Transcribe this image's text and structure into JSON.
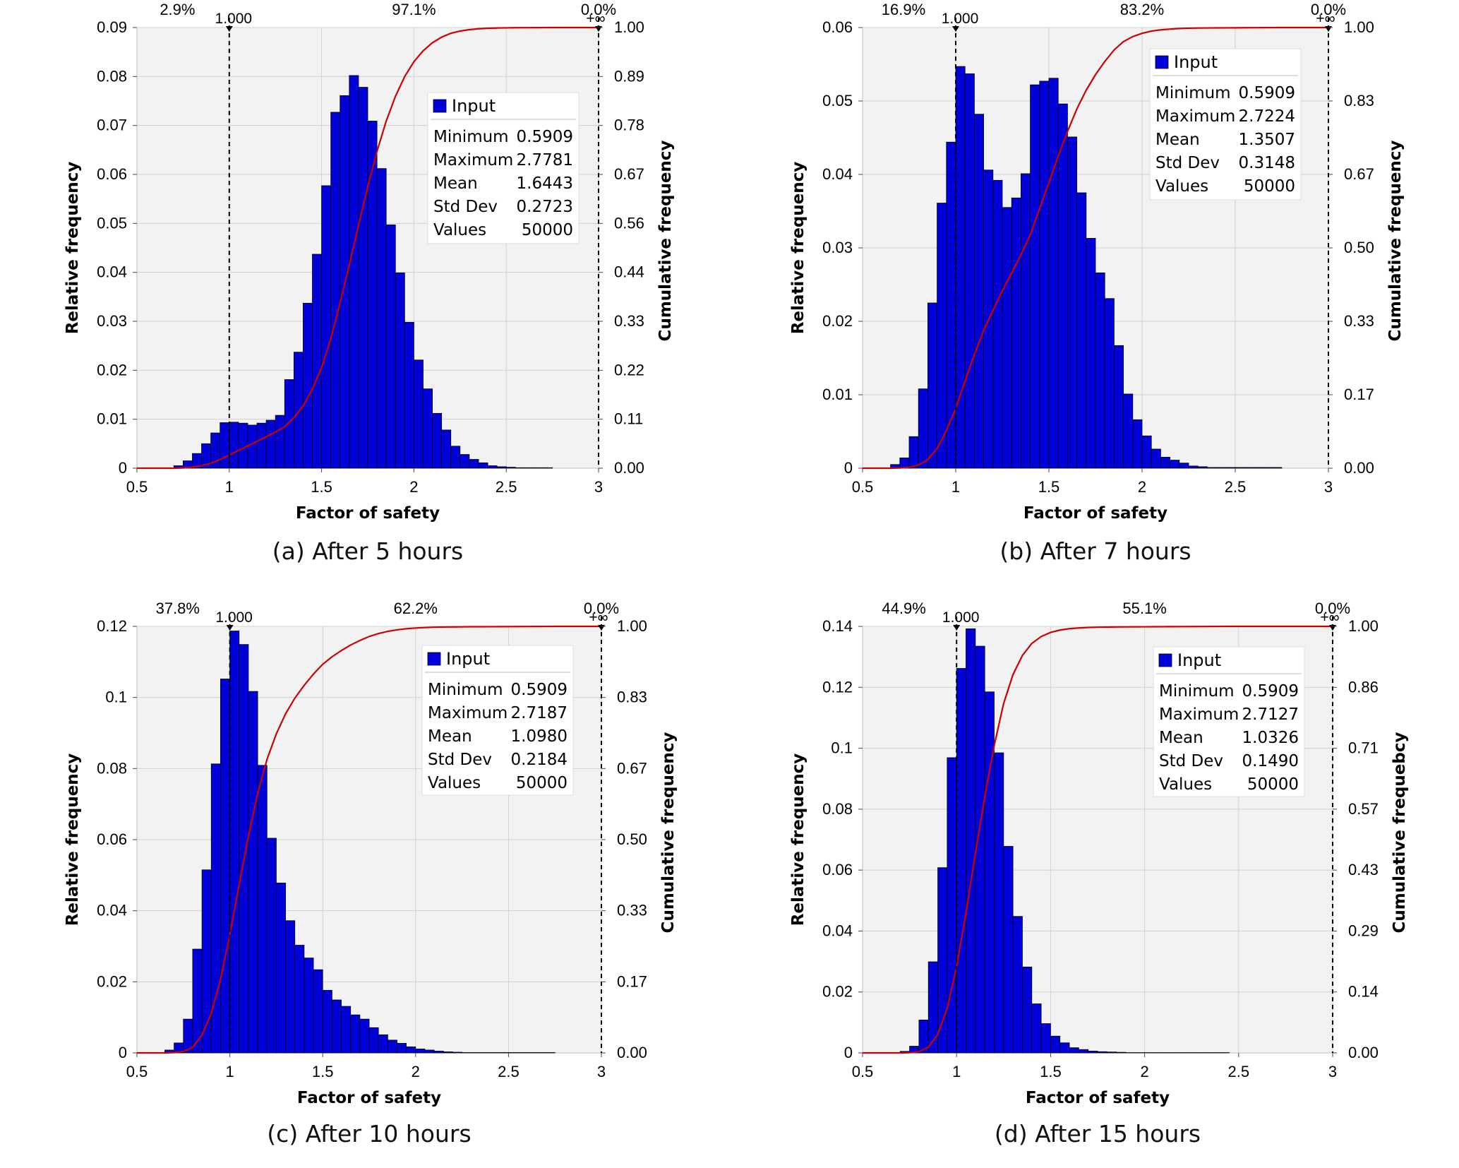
{
  "chart_data": [
    {
      "type": "bar",
      "caption": "(a)  After  5  hours",
      "xlabel": "Factor of safety",
      "ylabel": "Relative frequency",
      "y2label": "Cumulative frequency",
      "xlim": [
        0.5,
        3
      ],
      "ylim": [
        0,
        0.09
      ],
      "xticks": [
        "0.5",
        "1",
        "1.5",
        "2",
        "2.5",
        "3"
      ],
      "yticks": [
        "0",
        "0.01",
        "0.02",
        "0.03",
        "0.04",
        "0.05",
        "0.06",
        "0.07",
        "0.08",
        "0.09"
      ],
      "y2ticks": [
        "0.00",
        "0.11",
        "0.22",
        "0.33",
        "0.44",
        "0.56",
        "0.67",
        "0.78",
        "0.89",
        "1.00"
      ],
      "markers": [
        {
          "x": 1.0,
          "label": "1.000"
        },
        {
          "x": 3.0,
          "label": "+∞"
        }
      ],
      "region_labels": [
        {
          "x": 0.75,
          "label": "2.9%"
        },
        {
          "x": 2.0,
          "label": "97.1%"
        },
        {
          "x": 3.0,
          "label": "0.0%"
        }
      ],
      "legend": {
        "title": "Input",
        "rows": [
          [
            "Minimum",
            "0.5909"
          ],
          [
            "Maximum",
            "2.7781"
          ],
          [
            "Mean",
            "1.6443"
          ],
          [
            "Std Dev",
            "0.2723"
          ],
          [
            "Values",
            "50000"
          ]
        ]
      },
      "bin_start": 0.7,
      "bin_width": 0.05,
      "values": [
        0.0005,
        0.0015,
        0.003,
        0.005,
        0.0072,
        0.0093,
        0.0094,
        0.0092,
        0.0088,
        0.0092,
        0.0098,
        0.0108,
        0.0181,
        0.0237,
        0.0337,
        0.0437,
        0.0577,
        0.0727,
        0.0761,
        0.0802,
        0.0778,
        0.0709,
        0.0612,
        0.0497,
        0.0399,
        0.0298,
        0.0221,
        0.0162,
        0.0112,
        0.0078,
        0.0045,
        0.0028,
        0.0018,
        0.0011,
        0.0005,
        0.0003,
        0.0002,
        0.0001,
        0.0001,
        0.0001,
        0.0001
      ]
    },
    {
      "type": "bar",
      "caption": "(b)  After  7  hours",
      "xlabel": "Factor of safety",
      "ylabel": "Relative frequency",
      "y2label": "Cumulative frequency",
      "xlim": [
        0.5,
        3
      ],
      "ylim": [
        0,
        0.06
      ],
      "xticks": [
        "0.5",
        "1",
        "1.5",
        "2",
        "2.5",
        "3"
      ],
      "yticks": [
        "0",
        "0.01",
        "0.02",
        "0.03",
        "0.04",
        "0.05",
        "0.06"
      ],
      "y2ticks": [
        "0.00",
        "0.17",
        "0.33",
        "0.50",
        "0.67",
        "0.83",
        "1.00"
      ],
      "markers": [
        {
          "x": 1.0,
          "label": "1.000"
        },
        {
          "x": 3.0,
          "label": "+∞"
        }
      ],
      "region_labels": [
        {
          "x": 0.75,
          "label": "16.9%"
        },
        {
          "x": 2.0,
          "label": "83.2%"
        },
        {
          "x": 3.0,
          "label": "0.0%"
        }
      ],
      "legend": {
        "title": "Input",
        "rows": [
          [
            "Minimum",
            "0.5909"
          ],
          [
            "Maximum",
            "2.7224"
          ],
          [
            "Mean",
            "1.3507"
          ],
          [
            "Std Dev",
            "0.3148"
          ],
          [
            "Values",
            "50000"
          ]
        ]
      },
      "bin_start": 0.65,
      "bin_width": 0.05,
      "values": [
        0.0005,
        0.0014,
        0.0043,
        0.0108,
        0.0225,
        0.0361,
        0.0444,
        0.0547,
        0.0537,
        0.0482,
        0.0406,
        0.0392,
        0.0355,
        0.0368,
        0.0401,
        0.0522,
        0.0527,
        0.0531,
        0.0496,
        0.0451,
        0.0375,
        0.0313,
        0.0266,
        0.0231,
        0.0167,
        0.0101,
        0.0066,
        0.0044,
        0.0026,
        0.0015,
        0.0011,
        0.0007,
        0.0003,
        0.0002,
        0.0001,
        0.0001,
        0.0001,
        0.0001,
        0.0001,
        0.0001,
        0.0001,
        0.0001
      ]
    },
    {
      "type": "bar",
      "caption": "(c)  After  10  hours",
      "xlabel": "Factor of safety",
      "ylabel": "Relative frequency",
      "y2label": "Cumulative frequency",
      "xlim": [
        0.5,
        3
      ],
      "ylim": [
        0,
        0.12
      ],
      "xticks": [
        "0.5",
        "1",
        "1.5",
        "2",
        "2.5",
        "3"
      ],
      "yticks": [
        "0",
        "0.02",
        "0.04",
        "0.06",
        "0.08",
        "0.1",
        "0.12"
      ],
      "y2ticks": [
        "0.00",
        "0.17",
        "0.33",
        "0.50",
        "0.67",
        "0.83",
        "1.00"
      ],
      "markers": [
        {
          "x": 1.0,
          "label": "1.000"
        },
        {
          "x": 3.0,
          "label": "+∞"
        }
      ],
      "region_labels": [
        {
          "x": 0.75,
          "label": "37.8%"
        },
        {
          "x": 2.0,
          "label": "62.2%"
        },
        {
          "x": 3.0,
          "label": "0.0%"
        }
      ],
      "legend": {
        "title": "Input",
        "rows": [
          [
            "Minimum",
            "0.5909"
          ],
          [
            "Maximum",
            "2.7187"
          ],
          [
            "Mean",
            "1.0980"
          ],
          [
            "Std Dev",
            "0.2184"
          ],
          [
            "Values",
            "50000"
          ]
        ]
      },
      "bin_start": 0.65,
      "bin_width": 0.05,
      "values": [
        0.0008,
        0.0028,
        0.0095,
        0.0292,
        0.0515,
        0.0813,
        0.1052,
        0.1187,
        0.1149,
        0.1017,
        0.0809,
        0.0604,
        0.0478,
        0.0372,
        0.0303,
        0.0267,
        0.0234,
        0.0176,
        0.0149,
        0.0131,
        0.0107,
        0.0095,
        0.0071,
        0.0051,
        0.0036,
        0.0027,
        0.0017,
        0.0011,
        0.0008,
        0.0005,
        0.0003,
        0.0002,
        0.0001,
        0.0001,
        0.0001,
        0.0001,
        0.0001,
        0.0001,
        0.0001,
        0.0001,
        0.0001,
        0.0001
      ]
    },
    {
      "type": "bar",
      "caption": "(d)  After  15  hours",
      "xlabel": "Factor of safety",
      "ylabel": "Relative frequency",
      "y2label": "Cumulative frequebcy",
      "xlim": [
        0.5,
        3
      ],
      "ylim": [
        0,
        0.14
      ],
      "xticks": [
        "0.5",
        "1",
        "1.5",
        "2",
        "2.5",
        "3"
      ],
      "yticks": [
        "0",
        "0.02",
        "0.04",
        "0.06",
        "0.08",
        "0.1",
        "0.12",
        "0.14"
      ],
      "y2ticks": [
        "0.00",
        "0.14",
        "0.29",
        "0.43",
        "0.57",
        "0.71",
        "0.86",
        "1.00"
      ],
      "markers": [
        {
          "x": 1.0,
          "label": "1.000"
        },
        {
          "x": 3.0,
          "label": "+∞"
        }
      ],
      "region_labels": [
        {
          "x": 0.75,
          "label": "44.9%"
        },
        {
          "x": 2.0,
          "label": "55.1%"
        },
        {
          "x": 3.0,
          "label": "0.0%"
        }
      ],
      "legend": {
        "title": "Input",
        "rows": [
          [
            "Minimum",
            "0.5909"
          ],
          [
            "Maximum",
            "2.7127"
          ],
          [
            "Mean",
            "1.0326"
          ],
          [
            "Std Dev",
            "0.1490"
          ],
          [
            "Values",
            "50000"
          ]
        ]
      },
      "bin_start": 0.7,
      "bin_width": 0.05,
      "values": [
        0.0005,
        0.0022,
        0.0108,
        0.0299,
        0.0608,
        0.0969,
        0.1262,
        0.1392,
        0.1335,
        0.1185,
        0.0985,
        0.0678,
        0.0448,
        0.0282,
        0.0161,
        0.0096,
        0.0055,
        0.0033,
        0.0017,
        0.0011,
        0.0006,
        0.0004,
        0.0003,
        0.0002,
        0.0001,
        0.0001,
        0.0001,
        0.0001,
        0.0001,
        0.0001,
        0.0001,
        0.0001,
        0.0001,
        0.0001,
        0.0001
      ]
    }
  ],
  "colors": {
    "bar_fill": "#0000d8",
    "bar_edge": "#000000",
    "cdf_line": "#cc0000",
    "plot_bg": "#f2f2f2",
    "grid": "#d0d0d0"
  }
}
